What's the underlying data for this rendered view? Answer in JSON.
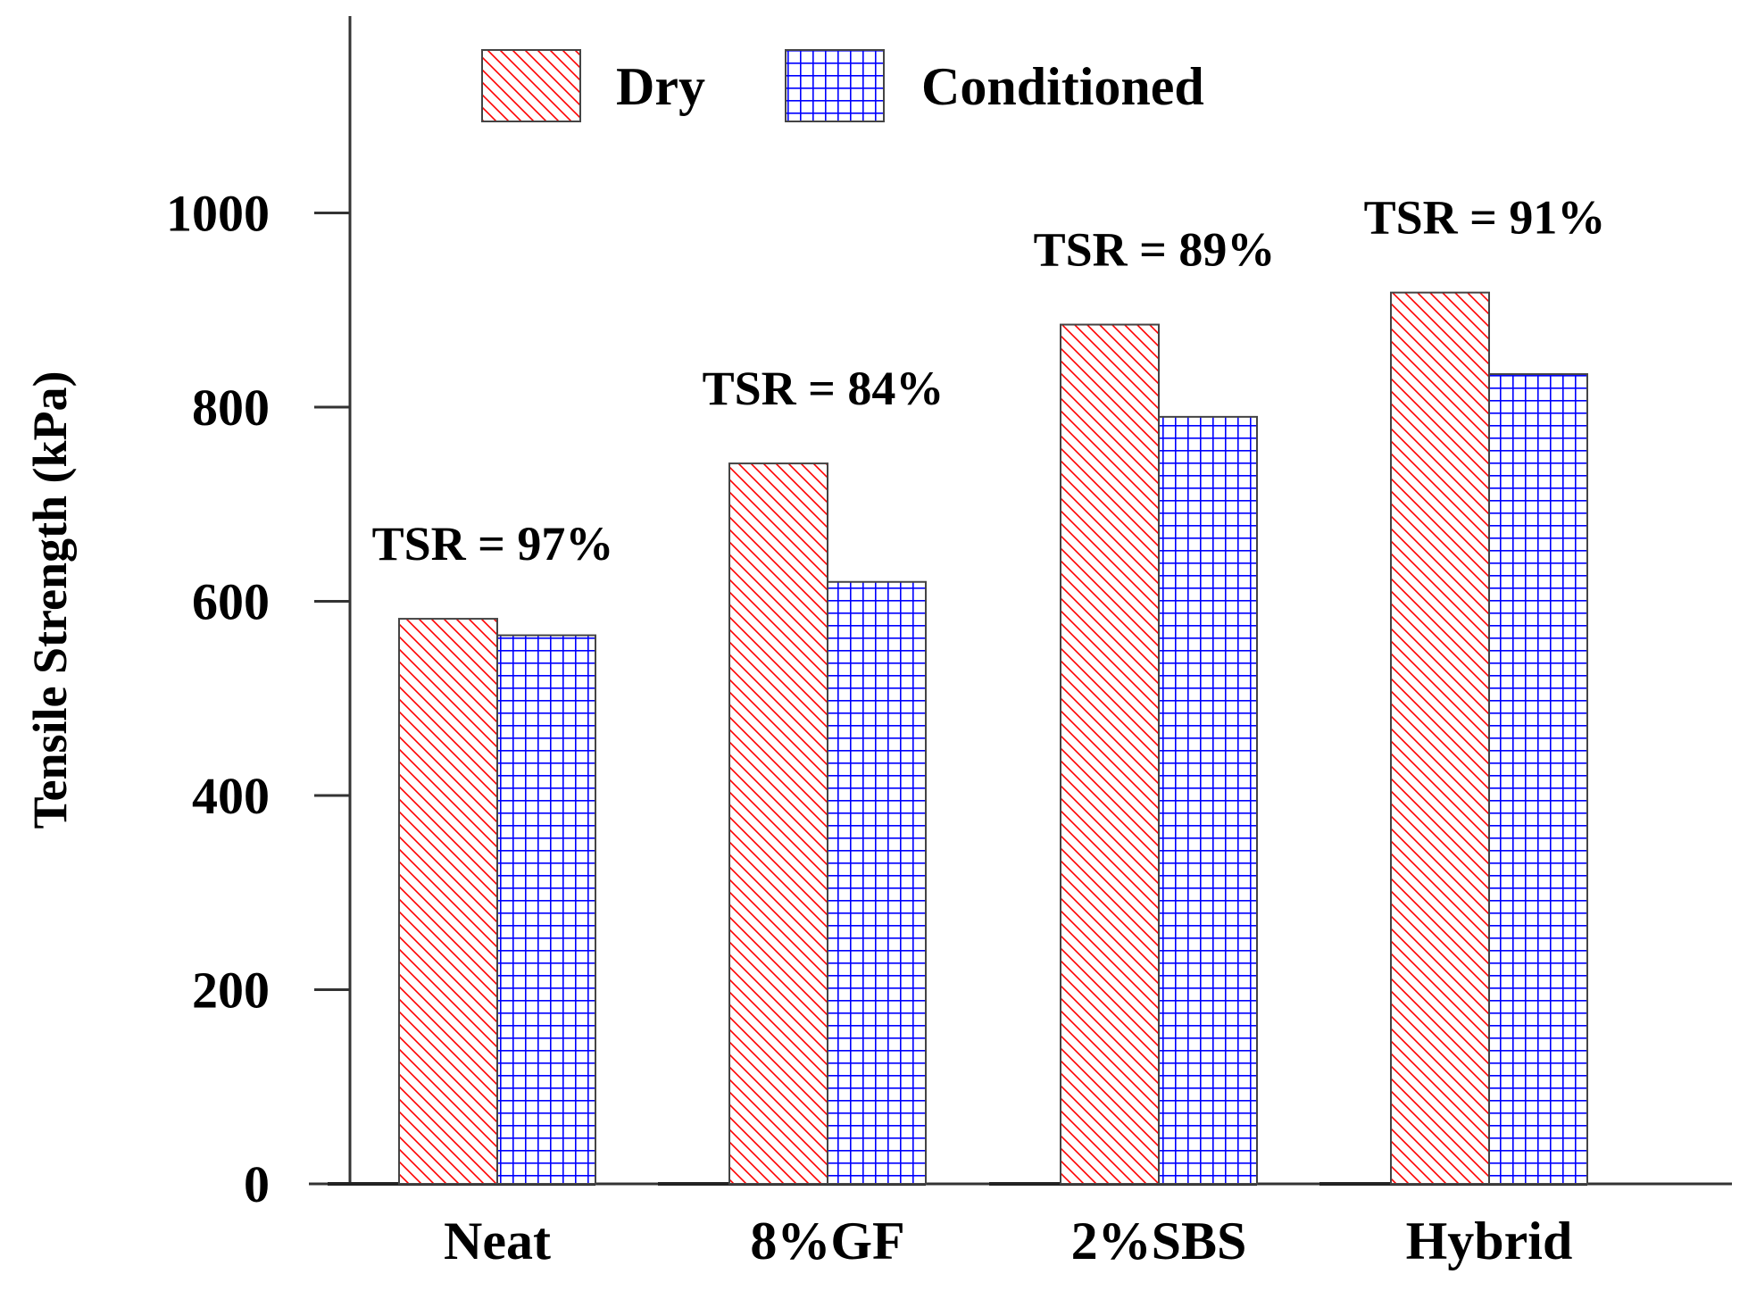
{
  "chart_data": {
    "type": "bar",
    "title": "",
    "xlabel": "",
    "ylabel": "Tensile Strength (kPa)",
    "ylim": [
      0,
      1200
    ],
    "yticks": [
      0,
      200,
      400,
      600,
      800,
      1000
    ],
    "ytick_labels": [
      "0",
      "200",
      "400",
      "600",
      "800",
      "1000"
    ],
    "categories": [
      "Neat",
      "8%GF",
      "2%SBS",
      "Hybrid"
    ],
    "series": [
      {
        "name": "Dry",
        "values": [
          582,
          742,
          885,
          918
        ],
        "color": "#ff0000",
        "pattern": "diagonal-hatch"
      },
      {
        "name": "Conditioned",
        "values": [
          565,
          620,
          790,
          834
        ],
        "color": "#0000ff",
        "pattern": "grid"
      }
    ],
    "annotations": [
      "TSR = 97%",
      "TSR = 84%",
      "TSR = 89%",
      "TSR = 91%"
    ],
    "legend": {
      "position": "top-center",
      "entries": [
        "Dry",
        "Conditioned"
      ]
    },
    "grid": false
  }
}
